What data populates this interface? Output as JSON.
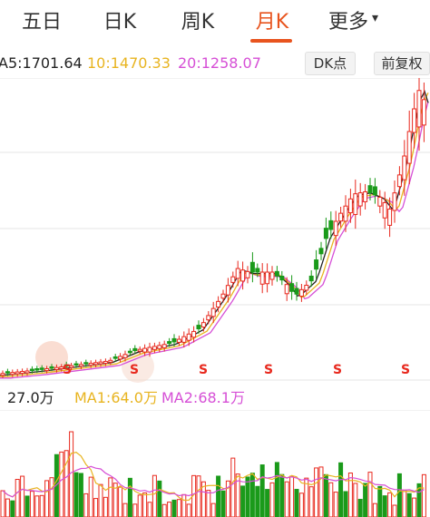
{
  "tabs": {
    "items": [
      {
        "label": "五日"
      },
      {
        "label": "日K"
      },
      {
        "label": "周K"
      },
      {
        "label": "月K"
      },
      {
        "label": "更多"
      }
    ],
    "active": "月K"
  },
  "ma": {
    "ma5": "A5:1701.64",
    "ma10": "10:1470.33",
    "ma20": "20:1258.07",
    "colors": {
      "ma5": "#222222",
      "ma10": "#e8b420",
      "ma20": "#d64fd6"
    }
  },
  "buttons": {
    "dk": "DK点",
    "adjust": "前复权"
  },
  "sell_marker": "S",
  "volume": {
    "vol": "27.0万",
    "ma1": "MA1:64.0万",
    "ma2": "MA2:68.1万",
    "colors": {
      "vol": "#222222",
      "ma1": "#e8b420",
      "ma2": "#d64fd6"
    }
  },
  "colors": {
    "up": "#e8291e",
    "down": "#1a9a1a",
    "accent": "#e8541e",
    "grid": "#e4e4e4"
  }
}
